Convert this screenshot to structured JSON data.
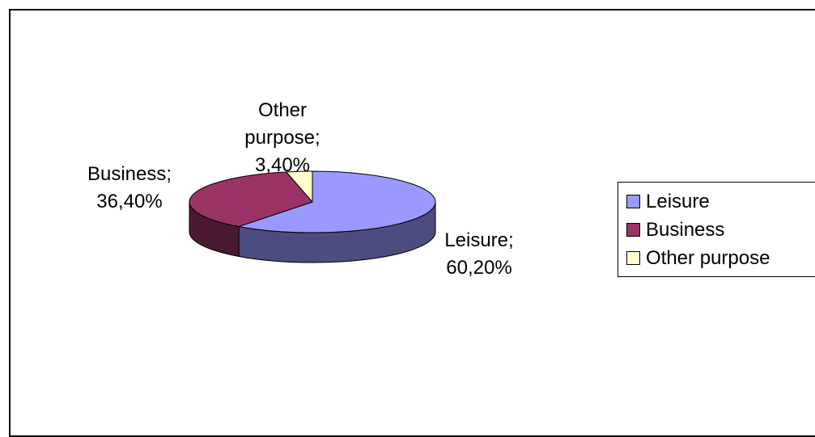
{
  "chart_data": {
    "type": "pie",
    "title": "",
    "slices": [
      {
        "name": "Leisure",
        "value": 60.2,
        "label": "Leisure;\n60,20%",
        "color": "#9999FF",
        "side_color": "#4C4C80"
      },
      {
        "name": "Business",
        "value": 36.4,
        "label": "Business;\n36,40%",
        "color": "#993366",
        "side_color": "#4C1933"
      },
      {
        "name": "Other purpose",
        "value": 3.4,
        "label": "Other\npurpose;\n3,40%",
        "color": "#FFFFCC",
        "side_color": "#808066"
      }
    ],
    "legend": {
      "placement": "right",
      "entries": [
        "Leisure",
        "Business",
        "Other purpose"
      ]
    }
  }
}
